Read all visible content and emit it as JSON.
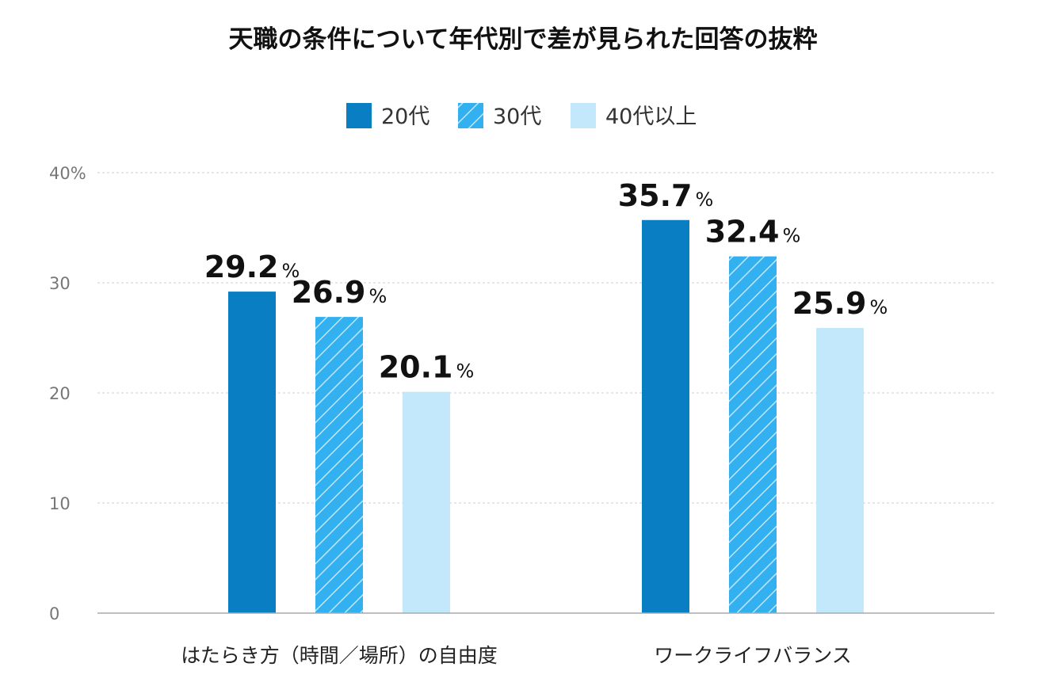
{
  "colors": {
    "s20": "#0a7ec2",
    "s30": "#33b0f0",
    "s40": "#c4e8fb"
  },
  "chart_data": {
    "type": "bar",
    "title": "天職の条件について年代別で差が見られた回答の抜粋",
    "categories": [
      "はたらき方（時間／場所）の自由度",
      "ワークライフバランス"
    ],
    "series": [
      {
        "name": "20代",
        "values": [
          29.2,
          35.7
        ],
        "labels": [
          "29.2",
          "35.7"
        ],
        "color": "#0a7ec2",
        "pattern": "solid"
      },
      {
        "name": "30代",
        "values": [
          26.9,
          32.4
        ],
        "labels": [
          "26.9",
          "32.4"
        ],
        "color": "#33b0f0",
        "pattern": "hatched"
      },
      {
        "name": "40代以上",
        "values": [
          20.1,
          25.9
        ],
        "labels": [
          "20.1",
          "25.9"
        ],
        "color": "#c4e8fb",
        "pattern": "solid"
      }
    ],
    "value_suffix": "%",
    "yticks": [
      "0",
      "10",
      "20",
      "30",
      "40%"
    ],
    "ylim": [
      0,
      40
    ],
    "grid": true,
    "legend": "top-center"
  }
}
